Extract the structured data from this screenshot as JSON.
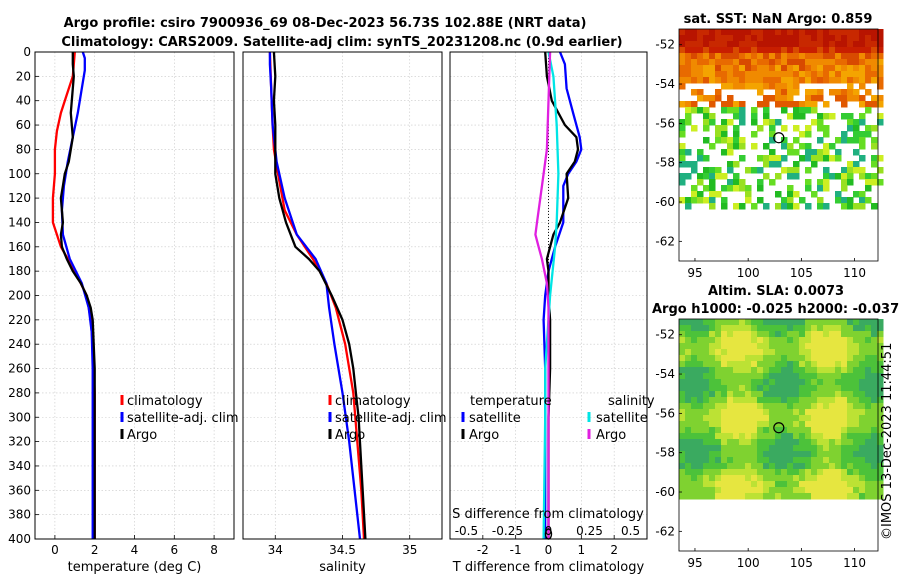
{
  "titles": {
    "line1": "Argo profile: csiro 7900936_69 08-Dec-2023 56.73S 102.88E (NRT data)",
    "line2": "Climatology: CARS2009. Satellite-adj clim: synTS_20231208.nc (0.9d earlier)"
  },
  "colors": {
    "climatology": "#ff0000",
    "satellite": "#0000ff",
    "argo": "#000000",
    "sat_salinity": "#00e5e5",
    "argo_salinity_diff": "#e020e0"
  },
  "chart_data": [
    {
      "type": "line",
      "id": "temperature",
      "xlabel": "temperature (deg C)",
      "ylabel": "",
      "xlim": [
        -1,
        9
      ],
      "ylim": [
        400,
        0
      ],
      "xticks": [
        "0",
        "2",
        "4",
        "6",
        "8"
      ],
      "yticks": [
        "0",
        "20",
        "40",
        "60",
        "80",
        "100",
        "120",
        "140",
        "160",
        "180",
        "200",
        "220",
        "240",
        "260",
        "280",
        "300",
        "320",
        "340",
        "360",
        "380",
        "400"
      ],
      "legend": [
        "climatology",
        "satellite-adj. clim",
        "Argo"
      ],
      "series": [
        {
          "name": "climatology",
          "depth": [
            0,
            20,
            35,
            50,
            65,
            80,
            100,
            120,
            140,
            160,
            180,
            200,
            220,
            240,
            260,
            280,
            300,
            340,
            400
          ],
          "values": [
            1.0,
            0.9,
            0.6,
            0.3,
            0.1,
            0.0,
            0.0,
            -0.1,
            -0.1,
            0.3,
            1.0,
            1.6,
            1.8,
            1.9,
            1.95,
            2.0,
            2.0,
            2.0,
            2.0
          ]
        },
        {
          "name": "satellite-adj. clim",
          "depth": [
            0,
            5,
            15,
            30,
            50,
            70,
            90,
            110,
            130,
            150,
            170,
            190,
            210,
            230,
            260,
            300,
            340,
            400
          ],
          "values": [
            1.4,
            1.5,
            1.5,
            1.35,
            1.15,
            0.9,
            0.65,
            0.45,
            0.35,
            0.4,
            0.75,
            1.35,
            1.7,
            1.85,
            1.9,
            1.9,
            1.9,
            1.9
          ]
        },
        {
          "name": "Argo",
          "depth": [
            0,
            10,
            20,
            30,
            40,
            50,
            60,
            70,
            80,
            90,
            100,
            110,
            120,
            130,
            140,
            150,
            160,
            170,
            180,
            190,
            200,
            210,
            220,
            240,
            260,
            290,
            320,
            360,
            400
          ],
          "values": [
            0.9,
            0.9,
            0.95,
            0.9,
            0.85,
            0.8,
            0.85,
            0.9,
            0.8,
            0.7,
            0.5,
            0.4,
            0.3,
            0.35,
            0.4,
            0.3,
            0.35,
            0.6,
            0.9,
            1.3,
            1.6,
            1.8,
            1.9,
            1.95,
            2.0,
            2.0,
            2.0,
            2.0,
            2.0
          ]
        }
      ]
    },
    {
      "type": "line",
      "id": "salinity",
      "xlabel": "salinity",
      "xlim": [
        33.76,
        35.24
      ],
      "ylim": [
        400,
        0
      ],
      "xticks": [
        "34",
        "34.5",
        "35"
      ],
      "legend": [
        "climatology",
        "satellite-adj. clim",
        "Argo"
      ],
      "series": [
        {
          "name": "climatology",
          "depth": [
            0,
            30,
            60,
            80,
            100,
            130,
            150,
            170,
            190,
            210,
            240,
            280,
            320,
            360,
            400
          ],
          "values": [
            33.96,
            33.97,
            33.98,
            33.99,
            34.02,
            34.07,
            34.16,
            34.28,
            34.38,
            34.45,
            34.52,
            34.58,
            34.61,
            34.64,
            34.66
          ]
        },
        {
          "name": "satellite-adj. clim",
          "depth": [
            0,
            10,
            30,
            60,
            90,
            120,
            150,
            170,
            190,
            210,
            240,
            280,
            320,
            360,
            400
          ],
          "values": [
            33.96,
            33.96,
            33.97,
            33.98,
            34.01,
            34.07,
            34.16,
            34.3,
            34.38,
            34.4,
            34.44,
            34.5,
            34.55,
            34.59,
            34.63
          ]
        },
        {
          "name": "Argo",
          "depth": [
            0,
            20,
            40,
            60,
            80,
            100,
            120,
            140,
            160,
            170,
            180,
            200,
            220,
            240,
            260,
            280,
            300,
            340,
            400
          ],
          "values": [
            33.99,
            34.0,
            33.99,
            34.0,
            34.0,
            34.0,
            34.03,
            34.08,
            34.15,
            34.25,
            34.33,
            34.42,
            34.5,
            34.55,
            34.58,
            34.6,
            34.62,
            34.64,
            34.67
          ]
        }
      ]
    },
    {
      "type": "line",
      "id": "differences",
      "xlabel": "T difference from climatology",
      "top_xlabel": "S difference from climatology",
      "xlim": [
        -3,
        3
      ],
      "ylim": [
        400,
        0
      ],
      "xticks": [
        "-2",
        "-1",
        "0",
        "1",
        "2"
      ],
      "top_xticks": [
        "-0.5",
        "-0.25",
        "0",
        "0.25",
        "0.5"
      ],
      "legend_title_left": "temperature",
      "legend_title_right": "salinity",
      "legend_left": [
        "satellite",
        "Argo"
      ],
      "legend_right": [
        "satellite",
        "Argo"
      ],
      "series": [
        {
          "name": "temperature satellite",
          "depth": [
            0,
            10,
            30,
            50,
            70,
            80,
            90,
            100,
            110,
            120,
            140,
            160,
            180,
            200,
            220,
            260,
            300,
            400
          ],
          "values": [
            0.35,
            0.5,
            0.55,
            0.75,
            0.95,
            1.0,
            0.85,
            0.6,
            0.45,
            0.45,
            0.45,
            0.2,
            0.0,
            -0.1,
            -0.15,
            -0.1,
            -0.1,
            -0.1
          ]
        },
        {
          "name": "temperature Argo",
          "depth": [
            0,
            20,
            40,
            60,
            70,
            80,
            90,
            100,
            120,
            140,
            150,
            160,
            170,
            180,
            200,
            220,
            260,
            300,
            400
          ],
          "values": [
            -0.1,
            -0.05,
            0.1,
            0.5,
            0.85,
            0.9,
            0.8,
            0.55,
            0.6,
            0.35,
            0.15,
            0.05,
            -0.05,
            0.0,
            0.0,
            0.05,
            0.05,
            0.0,
            0.0
          ]
        },
        {
          "name": "salinity satellite",
          "depth": [
            0,
            20,
            60,
            100,
            140,
            160,
            200,
            260,
            300,
            400
          ],
          "values": [
            0.0,
            0.03,
            0.05,
            0.06,
            0.05,
            0.04,
            0.01,
            -0.02,
            -0.02,
            -0.03
          ]
        },
        {
          "name": "salinity Argo",
          "depth": [
            0,
            40,
            80,
            100,
            120,
            140,
            150,
            160,
            170,
            190,
            210,
            260,
            300,
            400
          ],
          "values": [
            0.01,
            0.0,
            -0.01,
            -0.03,
            -0.05,
            -0.07,
            -0.08,
            -0.06,
            -0.04,
            -0.01,
            0.0,
            0.0,
            0.0,
            0.0
          ]
        }
      ]
    }
  ],
  "sst_map": {
    "title": "sat. SST: NaN Argo: 0.859",
    "yticks": [
      "-52",
      "-54",
      "-56",
      "-58",
      "-60",
      "-62"
    ],
    "xticks": [
      "95",
      "100",
      "105",
      "110"
    ]
  },
  "sla_map": {
    "title1": "Altim. SLA: 0.0073",
    "title2": "Argo h1000: -0.025 h2000: -0.037",
    "yticks": [
      "-52",
      "-54",
      "-56",
      "-58",
      "-60",
      "-62"
    ],
    "xticks": [
      "95",
      "100",
      "105",
      "110"
    ]
  },
  "watermark": "©IMOS 13-Dec-2023 11:44:51"
}
